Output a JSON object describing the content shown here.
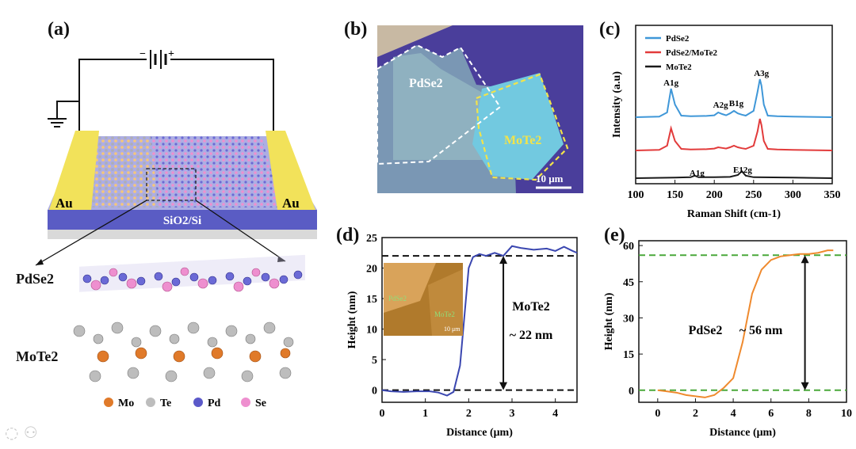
{
  "figure": {
    "panel_a": {
      "label": "(a)",
      "electrode_left": "Au",
      "electrode_right": "Au",
      "substrate_label": "SiO2/Si",
      "layer1_label": "PdSe2",
      "layer2_label": "MoTe2",
      "legend": [
        "Mo",
        "Te",
        "Pd",
        "Se"
      ],
      "colors": {
        "Mo": "#e07a2a",
        "Te": "#b9b9b9",
        "Pd": "#5b59c9",
        "Se": "#ee8fcf",
        "Au": "#f2e25a",
        "SiO2": "#5a5cc4"
      }
    },
    "panel_b": {
      "label": "(b)",
      "flake1_label": "PdSe2",
      "flake2_label": "MoTe2",
      "scale_bar": "10 μm"
    },
    "panel_c": {
      "label": "(c)",
      "legend": [
        "PdSe2",
        "PdSe2/MoTe2",
        "MoTe2"
      ],
      "peaks_top": [
        "A1g",
        "A2g",
        "B1g",
        "A3g"
      ],
      "peaks_bottom": [
        "A1g",
        "E12g"
      ]
    },
    "panel_d": {
      "label": "(d)",
      "annotation": "MoTe2",
      "annotation2": "~ 22 nm",
      "inset_labels": [
        "PdSe2",
        "MoTe2",
        "10 μm"
      ]
    },
    "panel_e": {
      "label": "(e)",
      "annotation": "PdSe2",
      "annotation2": "~ 56 nm"
    }
  },
  "chart_data": [
    {
      "id": "c",
      "type": "line",
      "xlabel": "Raman Shift (cm-1)",
      "ylabel": "Intensity (a.u)",
      "xlim": [
        100,
        350
      ],
      "xticks": [
        100,
        150,
        200,
        250,
        300,
        350
      ],
      "series": [
        {
          "name": "PdSe2",
          "color": "#3f97d8",
          "x": [
            100,
            130,
            140,
            145,
            150,
            158,
            170,
            190,
            200,
            205,
            210,
            215,
            220,
            225,
            230,
            235,
            240,
            250,
            255,
            258,
            260,
            263,
            268,
            280,
            300,
            350
          ],
          "y": [
            0,
            0.02,
            0.15,
            0.9,
            0.4,
            0.05,
            0.03,
            0.04,
            0.06,
            0.15,
            0.1,
            0.06,
            0.12,
            0.2,
            0.12,
            0.08,
            0.05,
            0.2,
            0.8,
            1.2,
            1.0,
            0.4,
            0.05,
            0.03,
            0.02,
            0
          ]
        },
        {
          "name": "PdSe2/MoTe2",
          "color": "#e23b3b",
          "x": [
            100,
            130,
            140,
            145,
            150,
            158,
            170,
            190,
            200,
            205,
            210,
            215,
            220,
            225,
            230,
            235,
            240,
            250,
            255,
            258,
            260,
            263,
            268,
            280,
            300,
            350
          ],
          "y": [
            0,
            0.02,
            0.15,
            0.7,
            0.3,
            0.05,
            0.03,
            0.04,
            0.06,
            0.1,
            0.08,
            0.06,
            0.1,
            0.15,
            0.1,
            0.07,
            0.05,
            0.15,
            0.6,
            1.0,
            0.8,
            0.3,
            0.05,
            0.03,
            0.02,
            0
          ]
        },
        {
          "name": "MoTe2",
          "color": "#1a1a1a",
          "x": [
            100,
            150,
            170,
            175,
            180,
            200,
            220,
            230,
            235,
            240,
            250,
            300,
            350
          ],
          "y": [
            0,
            0.02,
            0.03,
            0.08,
            0.03,
            0.03,
            0.04,
            0.1,
            0.22,
            0.08,
            0.03,
            0.02,
            0
          ]
        }
      ]
    },
    {
      "id": "d",
      "type": "line",
      "xlabel": "Distance (μm)",
      "ylabel": "Height (nm)",
      "xlim": [
        0,
        4.5
      ],
      "ylim": [
        -2,
        25
      ],
      "xticks": [
        0,
        1,
        2,
        3,
        4
      ],
      "yticks": [
        0,
        5,
        10,
        15,
        20,
        25
      ],
      "reference_lines": [
        0,
        22
      ],
      "series": [
        {
          "name": "",
          "color": "#3b47b0",
          "x": [
            0,
            0.2,
            0.5,
            0.8,
            1.1,
            1.3,
            1.5,
            1.65,
            1.8,
            1.9,
            2.0,
            2.1,
            2.25,
            2.4,
            2.6,
            2.8,
            3.0,
            3.2,
            3.5,
            3.8,
            4.0,
            4.2,
            4.4,
            4.5
          ],
          "y": [
            0,
            -0.2,
            -0.3,
            -0.2,
            -0.2,
            -0.4,
            -0.9,
            -0.3,
            4,
            12,
            20,
            21.8,
            22.3,
            22,
            22.5,
            22,
            23.6,
            23.3,
            23,
            23.2,
            22.8,
            23.5,
            22.8,
            22.5
          ]
        }
      ]
    },
    {
      "id": "e",
      "type": "line",
      "xlabel": "Distance (μm)",
      "ylabel": "Height (nm)",
      "xlim": [
        -1,
        10
      ],
      "ylim": [
        -5,
        62
      ],
      "xticks": [
        0,
        2,
        4,
        6,
        8,
        10
      ],
      "yticks": [
        0,
        15,
        30,
        45,
        60
      ],
      "reference_lines": [
        0,
        56
      ],
      "series": [
        {
          "name": "",
          "color": "#ef8a2e",
          "x": [
            0,
            0.5,
            1,
            1.5,
            2,
            2.5,
            3,
            3.5,
            4,
            4.5,
            5,
            5.5,
            6,
            6.5,
            7,
            7.5,
            8,
            8.5,
            9,
            9.3
          ],
          "y": [
            0,
            -0.5,
            -1,
            -2,
            -2.5,
            -3,
            -2,
            1,
            5,
            20,
            40,
            50,
            54,
            55.5,
            56,
            56.5,
            56.5,
            57,
            58,
            58
          ]
        }
      ]
    }
  ]
}
